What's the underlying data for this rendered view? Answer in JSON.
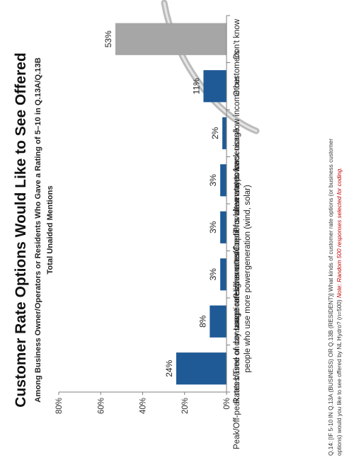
{
  "chart_data": {
    "type": "bar",
    "orientation": "vertical",
    "rotated": "90deg-clockwise",
    "title": "Customer Rate Options Would Like to See Offered",
    "subtitle": "Among Business Owner/Operators or Residents Who Gave a Rating of 5–10 in Q.13A/Q.13B",
    "subtitle2": "Total Unaided Mentions",
    "categories": [
      [
        "Peak/Off-peak rates/Time of day usage rates"
      ],
      [
        "Rates based on consumption/Higher rates for",
        "people who use more power"
      ],
      [
        "Lower rates/Lower rate options"
      ],
      [
        "Lower rates/Credit for alternate power",
        "generation (wind, solar)"
      ],
      [
        "Provide a way to track usage"
      ],
      [
        "Lower rates for seniors/low income customers"
      ],
      [
        "Other"
      ],
      [
        "Don't know"
      ]
    ],
    "values": [
      24,
      8,
      3,
      3,
      3,
      2,
      11,
      53
    ],
    "value_labels": [
      "24%",
      "8%",
      "3%",
      "3%",
      "3%",
      "2%",
      "11%",
      "53%"
    ],
    "bar_colors": [
      "#1F5A96",
      "#1F5A96",
      "#1F5A96",
      "#1F5A96",
      "#1F5A96",
      "#1F5A96",
      "#1F5A96",
      "#A6A6A6"
    ],
    "ylim": [
      0,
      80
    ],
    "y_ticks": [
      0,
      20,
      40,
      60,
      80
    ],
    "y_tick_labels": [
      "0%",
      "20%",
      "40%",
      "60%",
      "80%"
    ],
    "xlabel": "",
    "ylabel": "",
    "grid": false,
    "footnote_main": "Q.14: [IF 5-10 IN Q.13A (BUSINESS) OR Q.13B (RESIDENT)] What kinds of customer rate options (or business customer",
    "footnote_second": "options) would you like to see offered by NL Hydro? (n=500) ",
    "footnote_note": "Note: Random 500 responses selected for coding."
  },
  "colors": {
    "title": "#111111",
    "text": "#222222",
    "axis": "#7F7F7F",
    "note": "#C00000",
    "swoosh": "#9A9A9A"
  }
}
